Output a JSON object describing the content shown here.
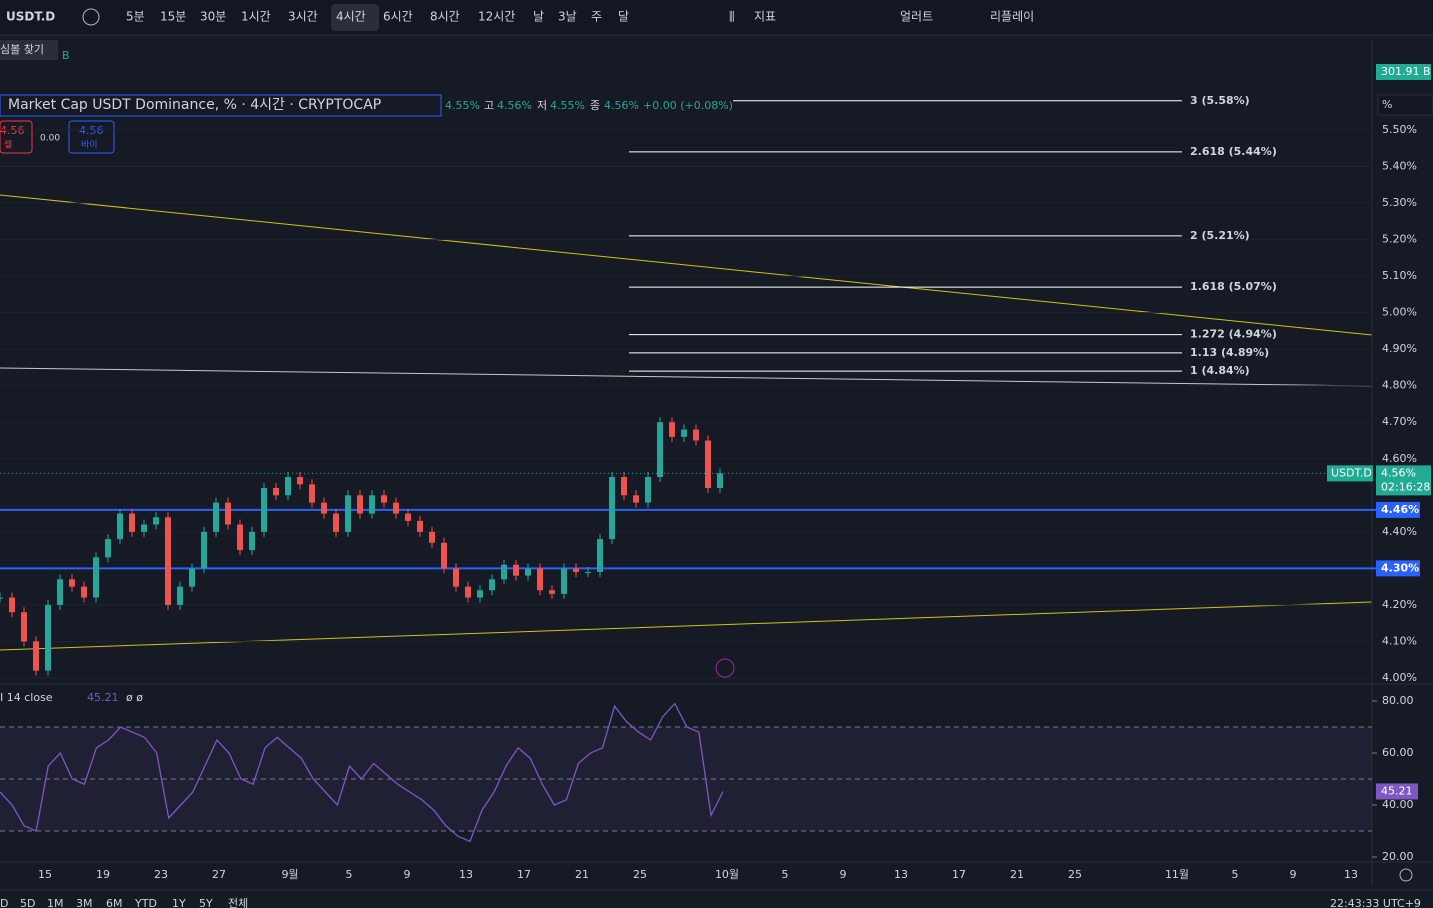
{
  "toolbar": {
    "symbol": "USDT.D",
    "intervals": [
      "5분",
      "15분",
      "30분",
      "1시간",
      "3시간",
      "4시간",
      "6시간",
      "8시간",
      "12시간",
      "날",
      "3날",
      "주",
      "달"
    ],
    "active_interval": 5,
    "indicators": "지표",
    "alerts": "얼러트",
    "replay": "리플레이"
  },
  "tooltip": "심볼 찾기",
  "legend": {
    "title": "Market Cap USDT Dominance, % · 4시간 · CRYPTOCAP",
    "open": "4.55%",
    "high_label": "고",
    "high": "4.56%",
    "low_label": "저",
    "low": "4.55%",
    "close_label": "종",
    "close": "4.56%",
    "change": "+0.00 (+0.08%)",
    "sell": "4.56",
    "sell_label": "셀",
    "spread": "0.00",
    "buy": "4.56",
    "buy_label": "바이",
    "volume_unit": "B"
  },
  "price_axis": {
    "unit": "%",
    "ticks": [
      {
        "value": 5.5,
        "label": "5.50%"
      },
      {
        "value": 5.4,
        "label": "5.40%"
      },
      {
        "value": 5.3,
        "label": "5.30%"
      },
      {
        "value": 5.2,
        "label": "5.20%"
      },
      {
        "value": 5.1,
        "label": "5.10%"
      },
      {
        "value": 5.0,
        "label": "5.00%"
      },
      {
        "value": 4.9,
        "label": "4.90%"
      },
      {
        "value": 4.8,
        "label": "4.80%"
      },
      {
        "value": 4.7,
        "label": "4.70%"
      },
      {
        "value": 4.6,
        "label": "4.60%"
      },
      {
        "value": 4.4,
        "label": "4.40%"
      },
      {
        "value": 4.2,
        "label": "4.20%"
      },
      {
        "value": 4.1,
        "label": "4.10%"
      },
      {
        "value": 4.0,
        "label": "4.00%"
      }
    ],
    "volume": "301.91 B",
    "symbol_tag": "USDT.D",
    "last": {
      "value": 4.56,
      "label": "4.56%"
    },
    "countdown": "02:16:28",
    "levels": [
      {
        "value": 4.46,
        "label": "4.46%"
      },
      {
        "value": 4.3,
        "label": "4.30%"
      }
    ]
  },
  "fib_levels": [
    {
      "value": 5.58,
      "label": "3 (5.58%)"
    },
    {
      "value": 5.44,
      "label": "2.618 (5.44%)"
    },
    {
      "value": 5.21,
      "label": "2 (5.21%)"
    },
    {
      "value": 5.07,
      "label": "1.618 (5.07%)"
    },
    {
      "value": 4.94,
      "label": "1.272 (4.94%)"
    },
    {
      "value": 4.89,
      "label": "1.13 (4.89%)"
    },
    {
      "value": 4.84,
      "label": "1 (4.84%)"
    }
  ],
  "price_closes": [
    4.22,
    4.18,
    4.1,
    4.02,
    4.2,
    4.27,
    4.25,
    4.22,
    4.33,
    4.38,
    4.45,
    4.4,
    4.42,
    4.44,
    4.2,
    4.25,
    4.3,
    4.4,
    4.48,
    4.42,
    4.35,
    4.4,
    4.52,
    4.5,
    4.55,
    4.53,
    4.48,
    4.45,
    4.4,
    4.5,
    4.45,
    4.5,
    4.48,
    4.45,
    4.43,
    4.4,
    4.37,
    4.3,
    4.25,
    4.22,
    4.24,
    4.27,
    4.31,
    4.28,
    4.3,
    4.24,
    4.23,
    4.3,
    4.29,
    4.29,
    4.38,
    4.55,
    4.5,
    4.48,
    4.55,
    4.7,
    4.66,
    4.68,
    4.65,
    4.52,
    4.56
  ],
  "rsi": {
    "label": "I 14 close",
    "value": "45.21",
    "extra": "ø ø",
    "ticks": [
      {
        "value": 80,
        "label": "80.00"
      },
      {
        "value": 60,
        "label": "60.00"
      },
      {
        "value": 40,
        "label": "40.00"
      },
      {
        "value": 20,
        "label": "20.00"
      }
    ],
    "bands": [
      70,
      50,
      30
    ],
    "values": [
      45,
      40,
      32,
      30,
      55,
      60,
      50,
      48,
      62,
      65,
      70,
      68,
      66,
      60,
      35,
      40,
      45,
      55,
      65,
      60,
      50,
      48,
      62,
      66,
      62,
      58,
      50,
      45,
      40,
      55,
      50,
      56,
      52,
      48,
      45,
      42,
      38,
      32,
      28,
      26,
      38,
      45,
      55,
      62,
      58,
      48,
      40,
      42,
      56,
      60,
      62,
      78,
      72,
      68,
      65,
      74,
      79,
      70,
      68,
      36,
      45.21
    ]
  },
  "x_axis": [
    "15",
    "19",
    "23",
    "27",
    "9월",
    "5",
    "9",
    "13",
    "17",
    "21",
    "25",
    "10월",
    "5",
    "9",
    "13",
    "17",
    "21",
    "25",
    "11월",
    "5",
    "9",
    "13"
  ],
  "ranges": [
    "D",
    "5D",
    "1M",
    "3M",
    "6M",
    "YTD",
    "1Y",
    "5Y",
    "전체"
  ],
  "clock": "22:43:33 UTC+9"
}
